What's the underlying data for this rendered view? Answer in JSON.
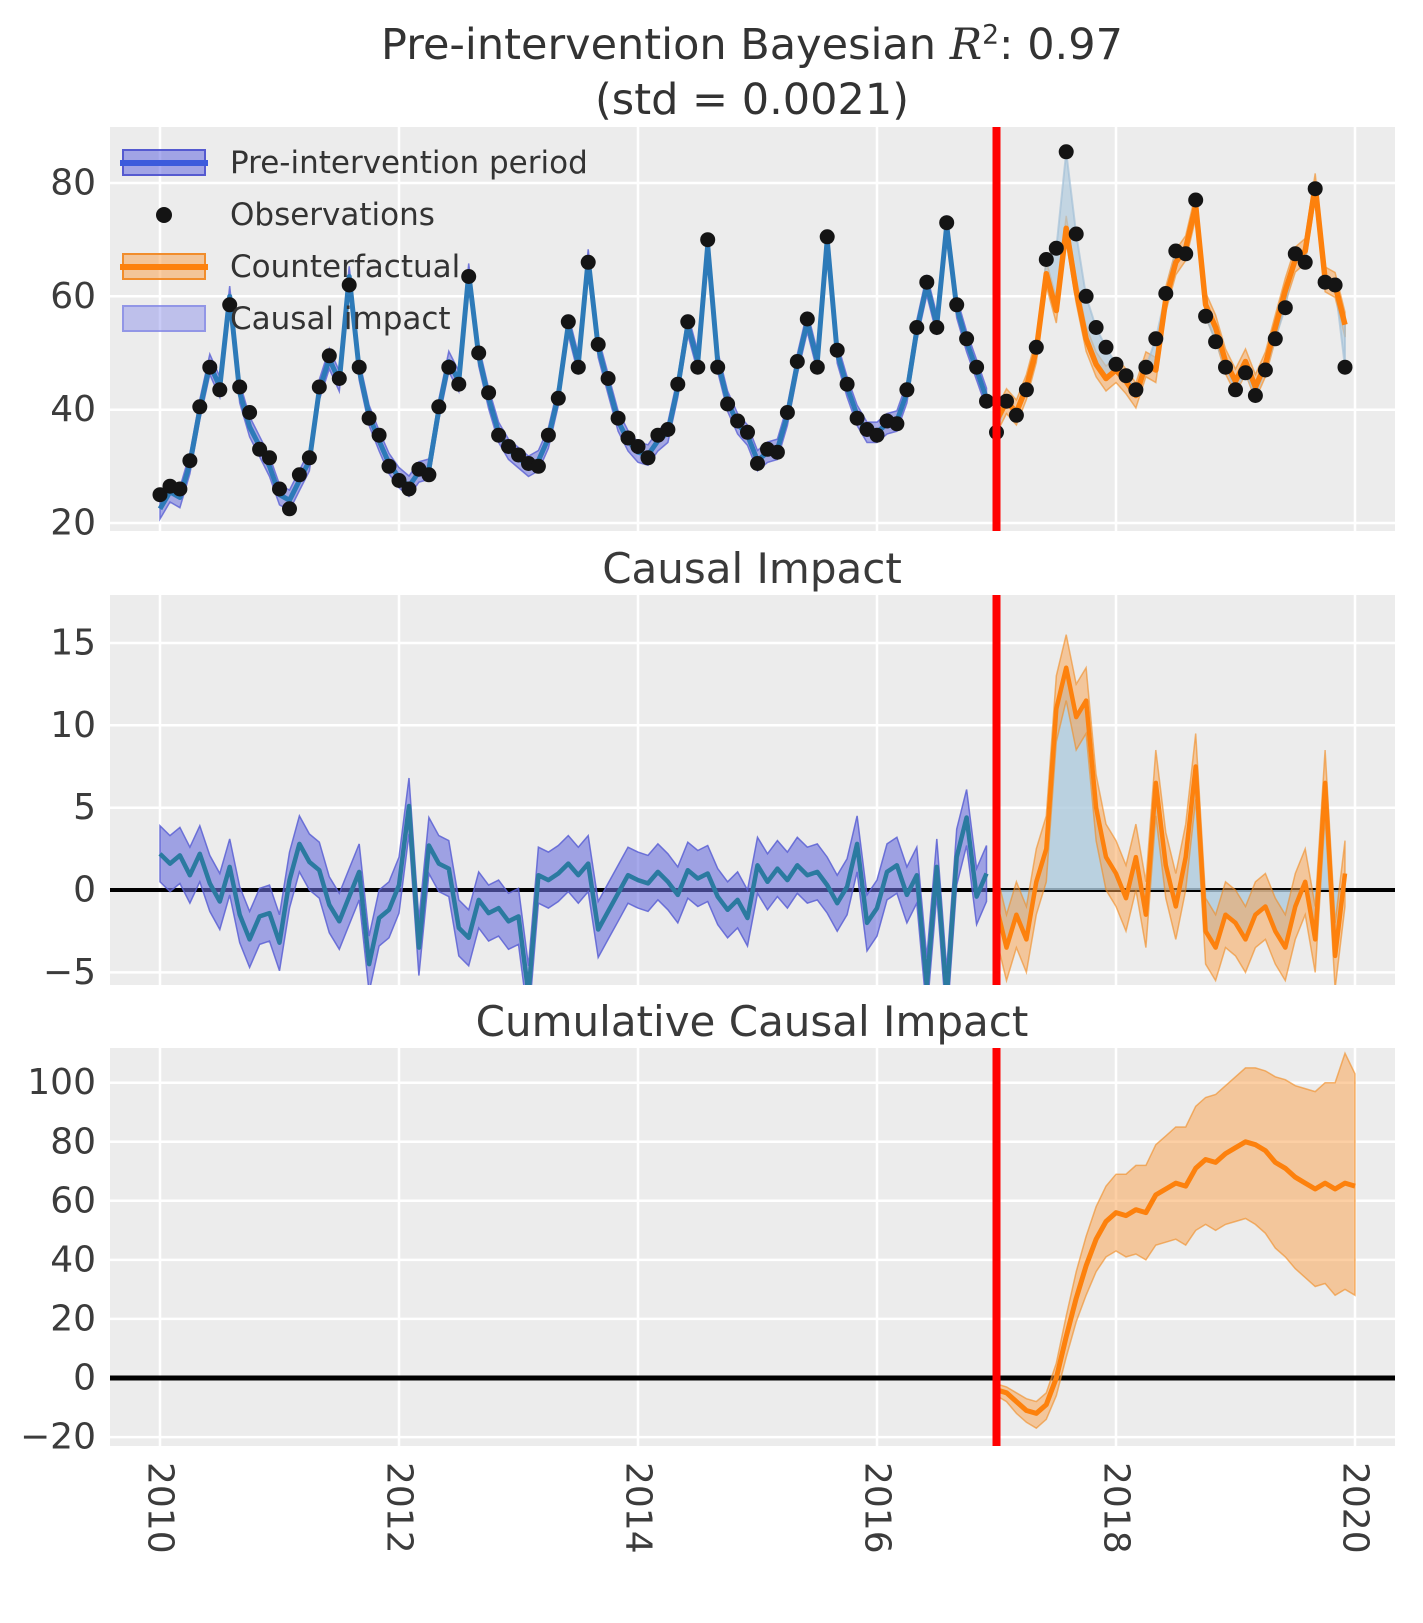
{
  "titles": {
    "main_prefix": "Pre-intervention Bayesian ",
    "main_rsymbol": "R",
    "main_exponent": "2",
    "main_suffix": ": 0.97",
    "main_line2": "(std = 0.0021)",
    "panel2": "Causal Impact",
    "panel3": "Cumulative Causal Impact"
  },
  "legend": {
    "items": [
      {
        "label": "Pre-intervention period",
        "swatch": "blue-band-with-line"
      },
      {
        "label": "Observations",
        "swatch": "black-dot"
      },
      {
        "label": "Counterfactual",
        "swatch": "orange-band-with-line"
      },
      {
        "label": "Causal impact",
        "swatch": "light-purple-band"
      }
    ]
  },
  "intervention": {
    "year": 2017,
    "line_color": "#ff0000"
  },
  "colors": {
    "panel_bg": "#ececec",
    "grid": "#ffffff",
    "text": "#3c3c3c",
    "blue_line": "#2d7ab8",
    "blue_band": "#6a6fdd",
    "blue_band_edge": "#5a60d4",
    "teal_line": "#2b7aa0",
    "orange_line": "#fd810d",
    "orange_band": "#f9a04a",
    "orange_band_edge": "#f08a1f",
    "impact_fill": "#aecadd",
    "impact_fill_edge": "#9dbdd6",
    "dot": "#141414",
    "zero_line": "#000000",
    "red_line": "#ff0000"
  },
  "axes": {
    "x": {
      "ticks": [
        {
          "label": "2010",
          "year": 2010
        },
        {
          "label": "2012",
          "year": 2012
        },
        {
          "label": "2014",
          "year": 2014
        },
        {
          "label": "2016",
          "year": 2016
        },
        {
          "label": "2018",
          "year": 2018
        },
        {
          "label": "2020",
          "year": 2020
        }
      ]
    },
    "panel1_y": {
      "ticks": [
        {
          "label": "20",
          "value": 20
        },
        {
          "label": "40",
          "value": 40
        },
        {
          "label": "60",
          "value": 60
        },
        {
          "label": "80",
          "value": 80
        }
      ]
    },
    "panel2_y": {
      "ticks": [
        {
          "label": "−5",
          "value": -5
        },
        {
          "label": "0",
          "value": 0
        },
        {
          "label": "5",
          "value": 5
        },
        {
          "label": "10",
          "value": 10
        },
        {
          "label": "15",
          "value": 15
        }
      ]
    },
    "panel3_y": {
      "ticks": [
        {
          "label": "−20",
          "value": -20
        },
        {
          "label": "0",
          "value": 0
        },
        {
          "label": "20",
          "value": 20
        },
        {
          "label": "40",
          "value": 40
        },
        {
          "label": "60",
          "value": 60
        },
        {
          "label": "80",
          "value": 80
        },
        {
          "label": "100",
          "value": 100
        }
      ]
    }
  },
  "chart_data": [
    {
      "type": "line",
      "title": "Pre-intervention Bayesian R2: 0.97 (std = 0.0021)",
      "x_start_year": 2010,
      "x_step": "month",
      "xlim": [
        2009.58,
        2020.33
      ],
      "ylim": [
        18.6,
        90
      ],
      "grid": true,
      "legend_position": "upper left",
      "intervention_x": 2017,
      "series": [
        {
          "name": "Observations",
          "style": "scatter",
          "x_start": 2010.0,
          "values": [
            25,
            26.5,
            26,
            31,
            40.5,
            47.5,
            43.5,
            58.5,
            44,
            39.5,
            33,
            31.5,
            26,
            22.5,
            28.5,
            31.5,
            44,
            49.5,
            45.5,
            62,
            47.5,
            38.5,
            35.5,
            30,
            27.5,
            26,
            29.5,
            28.5,
            40.5,
            47.5,
            44.5,
            63.5,
            50,
            43,
            35.5,
            33.5,
            32,
            30.5,
            30,
            35.5,
            42,
            55.5,
            47.5,
            66,
            51.5,
            45.5,
            38.5,
            35,
            33.5,
            31.5,
            35.5,
            36.5,
            44.5,
            55.5,
            47.5,
            70,
            47.5,
            41,
            38,
            36,
            30.5,
            33,
            32.5,
            39.5,
            48.5,
            56,
            47.5,
            70.5,
            50.5,
            44.5,
            38.5,
            36.5,
            35.5,
            38,
            37.5,
            43.5,
            54.5,
            62.5,
            54.5,
            73,
            58.5,
            52.5,
            47.5,
            41.5,
            36,
            41.5,
            39,
            43.5,
            51,
            66.5,
            68.5,
            85.5,
            71,
            60,
            54.5,
            51,
            48,
            46,
            43.5,
            47.5,
            52.5,
            60.5,
            68,
            67.5,
            77,
            56.5,
            52,
            47.5,
            43.5,
            46.5,
            42.5,
            47,
            52.5,
            58,
            67.5,
            66,
            79,
            62.5,
            62,
            47.5
          ]
        },
        {
          "name": "Pre-intervention period",
          "style": "line-with-band",
          "band_halfwidth": 1.8,
          "x_start": 2010.0,
          "values": [
            22.5,
            25.5,
            24.5,
            30.5,
            40,
            48,
            44,
            60,
            43,
            37,
            33.5,
            30,
            25,
            24,
            27.5,
            31,
            43.5,
            49,
            45,
            63.5,
            47,
            39,
            34.5,
            30.5,
            28,
            26.5,
            29,
            29.5,
            40,
            48.5,
            45,
            64,
            49.5,
            42,
            36,
            33,
            31.5,
            30,
            31,
            35,
            42.5,
            55,
            48,
            66.5,
            51,
            44.5,
            38,
            34.5,
            32.5,
            32,
            34.5,
            36,
            44,
            55,
            48.5,
            69,
            48.5,
            41.5,
            37.5,
            35.5,
            31,
            32.5,
            33,
            39,
            48,
            55.5,
            48.5,
            70,
            50,
            44,
            39,
            36,
            36,
            37.5,
            38,
            43,
            54,
            62,
            55,
            72.5,
            58,
            52,
            47,
            42
          ]
        },
        {
          "name": "Counterfactual",
          "style": "line-with-band",
          "band_halfwidth": 2.2,
          "x_start": 2017.0,
          "values": [
            38,
            41.5,
            39.5,
            44,
            50.5,
            64,
            57.5,
            72,
            61,
            52.5,
            48,
            45.5,
            47,
            45,
            42.5,
            48,
            47,
            59.5,
            66,
            68.5,
            76,
            58.5,
            54.5,
            48.5,
            45,
            48.5,
            44,
            48,
            54.5,
            61,
            66.5,
            68,
            79.5,
            63,
            62,
            55
          ]
        },
        {
          "name": "Causal impact",
          "style": "fill-between-observations-and-counterfactual",
          "x_start": 2017.0
        }
      ],
      "yticks": [
        20,
        40,
        60,
        80
      ],
      "xticks": [
        2010,
        2012,
        2014,
        2016,
        2018,
        2020
      ]
    },
    {
      "type": "line",
      "title": "Causal Impact",
      "x_start_year": 2010,
      "x_step": "month",
      "xlim": [
        2009.58,
        2020.33
      ],
      "ylim": [
        -5.8,
        17.9
      ],
      "grid": true,
      "zero_line": true,
      "intervention_x": 2017,
      "series": [
        {
          "name": "Pointwise impact (pre)",
          "style": "line-with-band",
          "band_halfwidth": 1.7,
          "x_start": 2010.0,
          "values": [
            2.2,
            1.6,
            2.1,
            0.9,
            2.2,
            0.4,
            -0.7,
            1.4,
            -1.5,
            -3,
            -1.6,
            -1.4,
            -3.2,
            0.6,
            2.8,
            1.7,
            1.2,
            -0.9,
            -1.9,
            -0.4,
            1.1,
            -4.5,
            -1.7,
            -1.2,
            0.3,
            5.1,
            -3.5,
            2.7,
            1.6,
            1.3,
            -2.3,
            -2.9,
            -0.6,
            -1.4,
            -1.1,
            -1.9,
            -1.6,
            -6.3,
            0.9,
            0.6,
            1,
            1.6,
            0.9,
            1.6,
            -2.4,
            -1.3,
            -0.2,
            0.9,
            0.6,
            0.4,
            1.1,
            0.5,
            -0.3,
            1.2,
            0.7,
            1,
            -0.4,
            -1.2,
            -0.6,
            -1.7,
            1.5,
            0.5,
            1.3,
            0.6,
            1.5,
            0.9,
            1.1,
            0.3,
            -0.8,
            0.2,
            2.8,
            -2,
            -1.1,
            1.1,
            1.5,
            -0.3,
            0.9,
            -5.8,
            1.4,
            -6.5,
            2,
            4.4,
            -0.4,
            1
          ]
        },
        {
          "name": "Pointwise impact (post)",
          "style": "line-with-band-and-fill-to-zero",
          "band_halfwidth": 2.0,
          "x_start": 2017.0,
          "values": [
            -1,
            -3.5,
            -1.5,
            -3,
            0.5,
            2.5,
            11,
            13.5,
            10.5,
            11.5,
            5,
            2,
            1,
            -0.5,
            2,
            -1.5,
            6.5,
            1.5,
            -1,
            2,
            7.5,
            -2.5,
            -3.5,
            -1.5,
            -2,
            -3,
            -1.5,
            -1,
            -2.5,
            -3.5,
            -1,
            0.5,
            -3,
            6.5,
            -4,
            1
          ]
        }
      ],
      "yticks": [
        -5,
        0,
        5,
        10,
        15
      ],
      "xticks": [
        2010,
        2012,
        2014,
        2016,
        2018,
        2020
      ]
    },
    {
      "type": "line",
      "title": "Cumulative Causal Impact",
      "x_start_year": 2017,
      "x_step": "month",
      "xlim": [
        2009.58,
        2020.33
      ],
      "ylim": [
        -23,
        112
      ],
      "grid": true,
      "zero_line": true,
      "intervention_x": 2017,
      "series": [
        {
          "name": "Cumulative impact",
          "style": "line-with-band",
          "x_start": 2017.0,
          "values": [
            -4,
            -5,
            -8,
            -11,
            -12,
            -9,
            0,
            14,
            27,
            38,
            47,
            53,
            56,
            55,
            57,
            56,
            62,
            64,
            66,
            65,
            71,
            74,
            73,
            76,
            78,
            80,
            79,
            77,
            73,
            71,
            68,
            66,
            64,
            66,
            64,
            66,
            65
          ],
          "band_lower": [
            -6,
            -8,
            -12,
            -15,
            -17,
            -14,
            -6,
            7,
            19,
            28,
            36,
            41,
            43,
            41,
            42,
            40,
            45,
            46,
            47,
            45,
            50,
            52,
            50,
            52,
            53,
            54,
            52,
            49,
            44,
            41,
            37,
            34,
            31,
            32,
            28,
            30,
            28
          ],
          "band_upper": [
            -2,
            -3,
            -5,
            -7,
            -8,
            -5,
            5,
            21,
            36,
            48,
            58,
            65,
            69,
            69,
            72,
            72,
            79,
            82,
            85,
            85,
            92,
            95,
            96,
            99,
            102,
            105,
            105,
            104,
            102,
            101,
            99,
            98,
            97,
            100,
            100,
            110,
            103
          ]
        }
      ],
      "yticks": [
        -20,
        0,
        20,
        40,
        60,
        80,
        100
      ],
      "xticks": [
        2010,
        2012,
        2014,
        2016,
        2018,
        2020
      ]
    }
  ]
}
